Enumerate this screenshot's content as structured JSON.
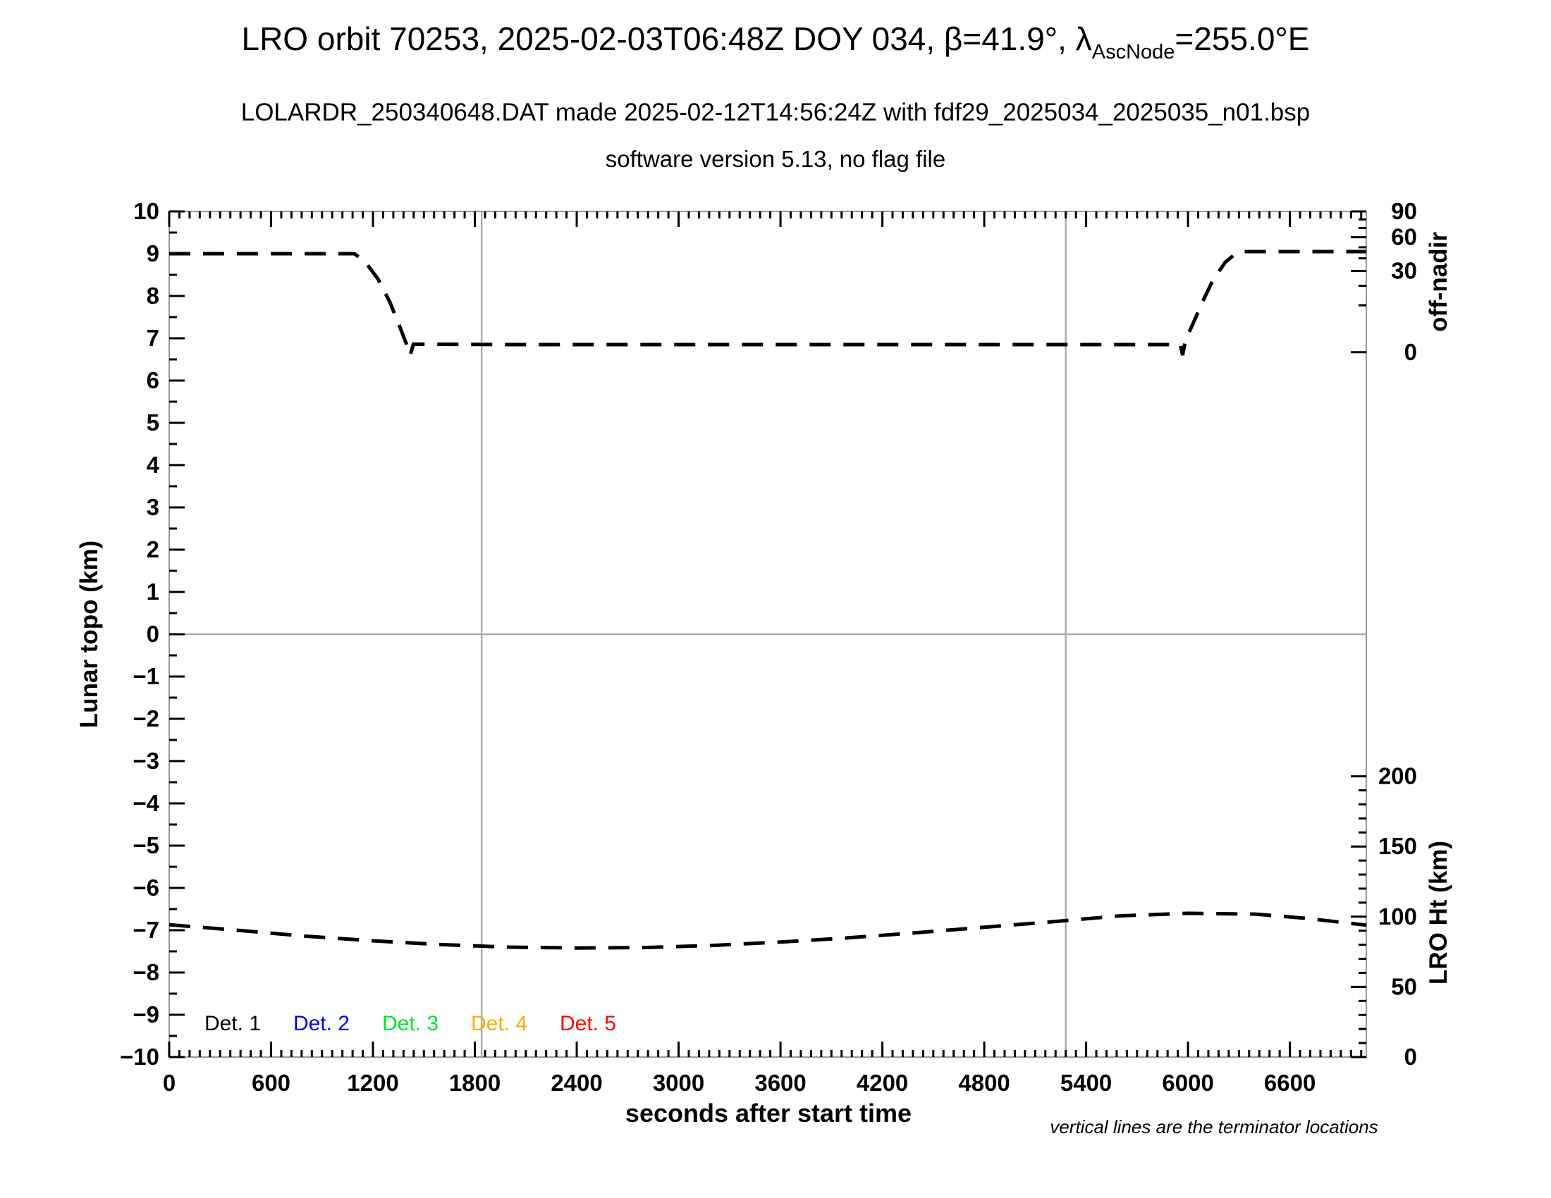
{
  "title": {
    "full_text": "LRO orbit 70253, 2025-02-03T06:48Z DOY 034, β=41.9°, λAscNode=255.0°E",
    "prefix": "LRO orbit 70253, 2025-02-03T06:48Z DOY 034, β=41.9°, λ",
    "lambda_subscript": "AscNode",
    "suffix": "=255.0°E"
  },
  "subtitle1": "LOLARDR_250340648.DAT made 2025-02-12T14:56:24Z with fdf29_2025034_2025035_n01.bsp",
  "subtitle2": "software version 5.13, no flag file",
  "axes": {
    "x": {
      "label": "seconds after start time",
      "range_s": [
        0,
        7050
      ],
      "major_tick_step_s": 600,
      "minor_tick_step_s": 60,
      "tick_labels": [
        "0",
        "600",
        "1200",
        "1800",
        "2400",
        "3000",
        "3600",
        "4200",
        "4800",
        "5400",
        "6000",
        "6600"
      ]
    },
    "y_left": {
      "label": "Lunar topo (km)",
      "range": [
        -10,
        10
      ],
      "major_tick_step": 1,
      "minor_tick_step": 0.5,
      "tick_labels": [
        "−10",
        "−9",
        "−8",
        "−7",
        "−6",
        "−5",
        "−4",
        "−3",
        "−2",
        "−1",
        "0",
        "1",
        "2",
        "3",
        "4",
        "5",
        "6",
        "7",
        "8",
        "9",
        "10"
      ]
    },
    "y_right_top": {
      "label": "off-nadir",
      "tick_labels": [
        "90",
        "60",
        "30",
        "0"
      ],
      "tick_values_deg": [
        90,
        60,
        30,
        0
      ],
      "minor_tick_values_deg": [
        80,
        70,
        50,
        40,
        20,
        10
      ],
      "map_note": "left_units = 6.67 + 3.33*sqrt(deg/90)",
      "zero_L": 6.67,
      "span_L": 3.33
    },
    "y_right_bottom": {
      "label": "LRO Ht (km)",
      "tick_labels": [
        "200",
        "150",
        "100",
        "50",
        "0"
      ],
      "tick_values_km": [
        200,
        150,
        100,
        50,
        0
      ],
      "minor_tick_step_km": 10,
      "map_note": "left_units = -10 + km*0.0332",
      "base_L": -10,
      "slope_L_per_km": 0.0332
    }
  },
  "legend": {
    "items": [
      {
        "label": "Det. 1",
        "color": "#000000"
      },
      {
        "label": "Det. 2",
        "color": "#0000ff"
      },
      {
        "label": "Det. 3",
        "color": "#00e532"
      },
      {
        "label": "Det. 4",
        "color": "#ffa800"
      },
      {
        "label": "Det. 5",
        "color": "#ff0000"
      }
    ]
  },
  "annotations": {
    "terminator_note": "vertical lines are the terminator locations"
  },
  "colors": {
    "curve": "#000000",
    "grid_line": "#a9a9a9",
    "frame": "#999999",
    "tick": "#000000"
  },
  "chart_data": {
    "type": "line",
    "title": "LRO orbit 70253 off-nadir angle and spacecraft height vs time",
    "xlabel": "seconds after start time",
    "x_range_s": [
      0,
      7050
    ],
    "ylabel_left": "Lunar topo (km)",
    "y_left_range": [
      -10,
      10
    ],
    "terminator_lines_s": [
      1840,
      5280
    ],
    "zero_topo_gridline": 0,
    "series": [
      {
        "name": "off-nadir angle",
        "style": "dashed-black",
        "units_plotted": "left-axis units (right axis: degrees off-nadir, sqrt scale)",
        "summary_deg": {
          "start": 44,
          "middle": 0.3,
          "end": 46
        },
        "points_left_units": [
          [
            0,
            9.0
          ],
          [
            500,
            9.0
          ],
          [
            1090,
            9.0
          ],
          [
            1150,
            8.83
          ],
          [
            1230,
            8.4
          ],
          [
            1300,
            7.85
          ],
          [
            1360,
            7.25
          ],
          [
            1405,
            6.78
          ],
          [
            1420,
            6.6
          ],
          [
            1438,
            6.86
          ],
          [
            2000,
            6.85
          ],
          [
            3000,
            6.85
          ],
          [
            4000,
            6.85
          ],
          [
            5000,
            6.85
          ],
          [
            5940,
            6.85
          ],
          [
            5955,
            6.85
          ],
          [
            5968,
            6.6
          ],
          [
            5985,
            6.95
          ],
          [
            6030,
            7.35
          ],
          [
            6090,
            7.9
          ],
          [
            6150,
            8.4
          ],
          [
            6220,
            8.8
          ],
          [
            6280,
            9.0
          ],
          [
            6320,
            9.05
          ],
          [
            6700,
            9.05
          ],
          [
            7050,
            9.05
          ]
        ]
      },
      {
        "name": "LRO height",
        "style": "dashed-black",
        "units_plotted": "left-axis units (right axis: km, 100 km at -6.7)",
        "summary_km": {
          "start": 95,
          "min": 78,
          "max": 103,
          "end": 95
        },
        "points_left_units": [
          [
            0,
            -6.87
          ],
          [
            400,
            -7.0
          ],
          [
            800,
            -7.14
          ],
          [
            1200,
            -7.25
          ],
          [
            1600,
            -7.34
          ],
          [
            2000,
            -7.4
          ],
          [
            2400,
            -7.42
          ],
          [
            2800,
            -7.41
          ],
          [
            3200,
            -7.36
          ],
          [
            3600,
            -7.28
          ],
          [
            4000,
            -7.18
          ],
          [
            4400,
            -7.06
          ],
          [
            4800,
            -6.93
          ],
          [
            5200,
            -6.8
          ],
          [
            5600,
            -6.66
          ],
          [
            6000,
            -6.6
          ],
          [
            6400,
            -6.62
          ],
          [
            6700,
            -6.72
          ],
          [
            7050,
            -6.88
          ]
        ]
      }
    ],
    "legend_entries": [
      "Det. 1",
      "Det. 2",
      "Det. 3",
      "Det. 4",
      "Det. 5"
    ],
    "legend_note": "no detector topography curves are plotted in this frame"
  }
}
